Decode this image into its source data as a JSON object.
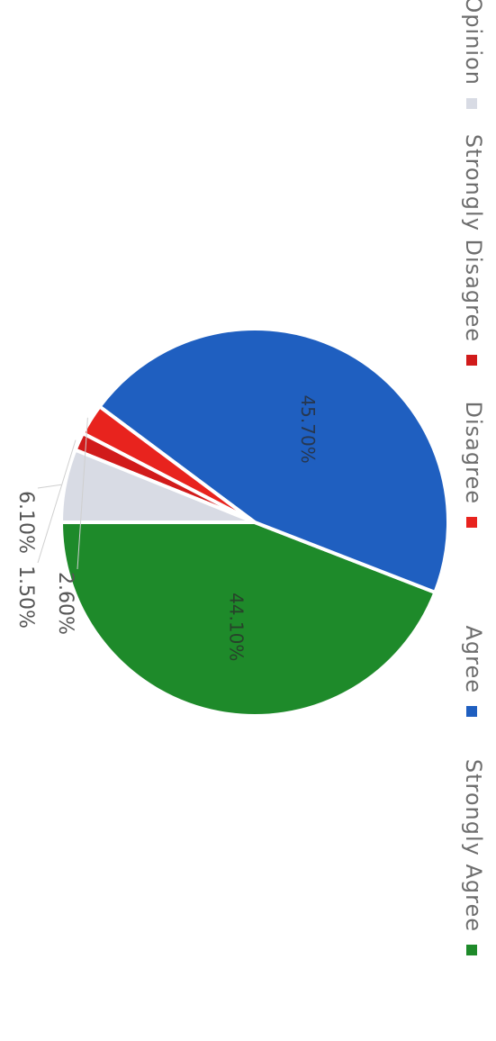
{
  "chart_data": {
    "type": "pie",
    "categories": [
      "Strongly Agree",
      "Agree",
      "Disagree",
      "Strongly Disagree",
      "No Opinion"
    ],
    "values": [
      44.1,
      45.7,
      2.6,
      1.5,
      6.1
    ],
    "value_labels": [
      "44.10%",
      "45.70%",
      "2.60%",
      "1.50%",
      "6.10%"
    ],
    "colors": [
      "#1e8a2a",
      "#1f5fc0",
      "#e8231e",
      "#d11b1b",
      "#d8dbe4"
    ],
    "legend": "bottom"
  }
}
